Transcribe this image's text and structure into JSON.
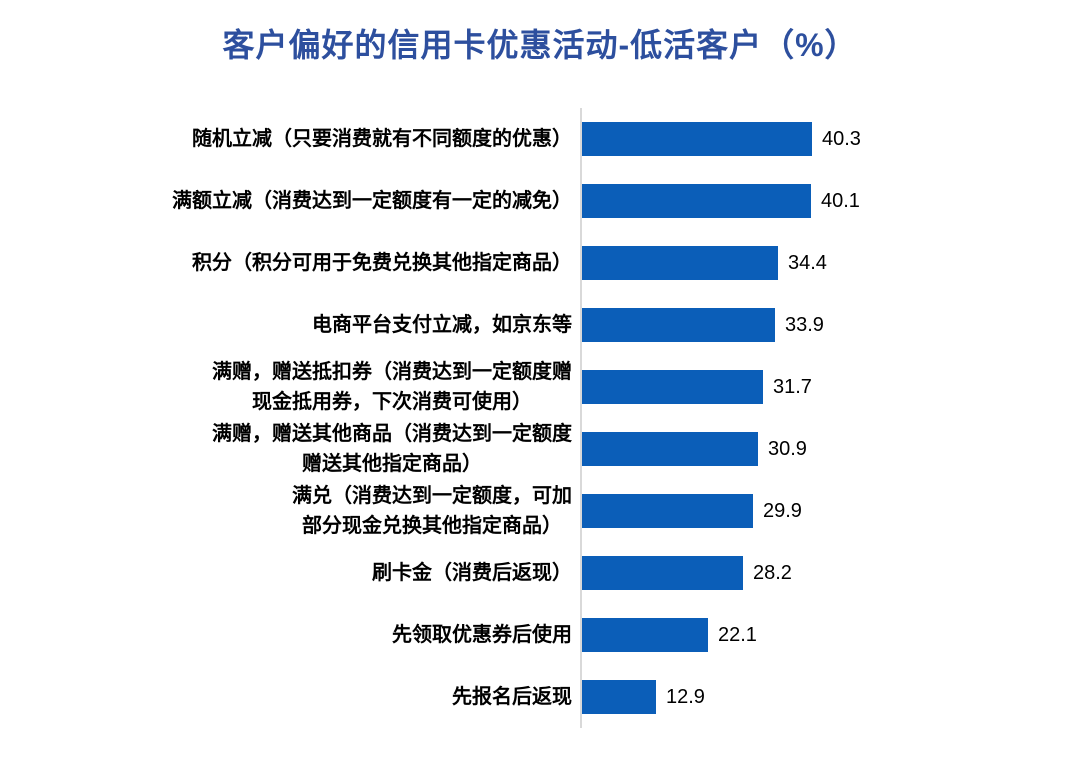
{
  "title": {
    "text": "客户偏好的信用卡优惠活动-低活客户（%）"
  },
  "chart_data": {
    "type": "bar",
    "orientation": "horizontal",
    "title": "客户偏好的信用卡优惠活动-低活客户（%）",
    "categories": [
      "随机立减（只要消费就有不同额度的优惠）",
      "满额立减（消费达到一定额度有一定的减免）",
      "积分（积分可用于免费兑换其他指定商品）",
      "电商平台支付立减，如京东等",
      "满赠，赠送抵扣券（消费达到一定额度赠\n现金抵用券，下次消费可使用）",
      "满赠，赠送其他商品（消费达到一定额度\n赠送其他指定商品）",
      "满兑（消费达到一定额度，可加\n部分现金兑换其他指定商品）",
      "刷卡金（消费后返现）",
      "先领取优惠券后使用",
      "先报名后返现"
    ],
    "values": [
      40.3,
      40.1,
      34.4,
      33.9,
      31.7,
      30.9,
      29.9,
      28.2,
      22.1,
      12.9
    ],
    "xlabel": "",
    "ylabel": "",
    "xlim": [
      0,
      45
    ],
    "grid": false,
    "legend": false,
    "data_labels": "outside-end",
    "colors": {
      "bar": "#0B5EB8",
      "title": "#2D4F9E",
      "axis_line": "#D9D9D9",
      "label_text": "#000000",
      "value_text": "#000000"
    }
  }
}
